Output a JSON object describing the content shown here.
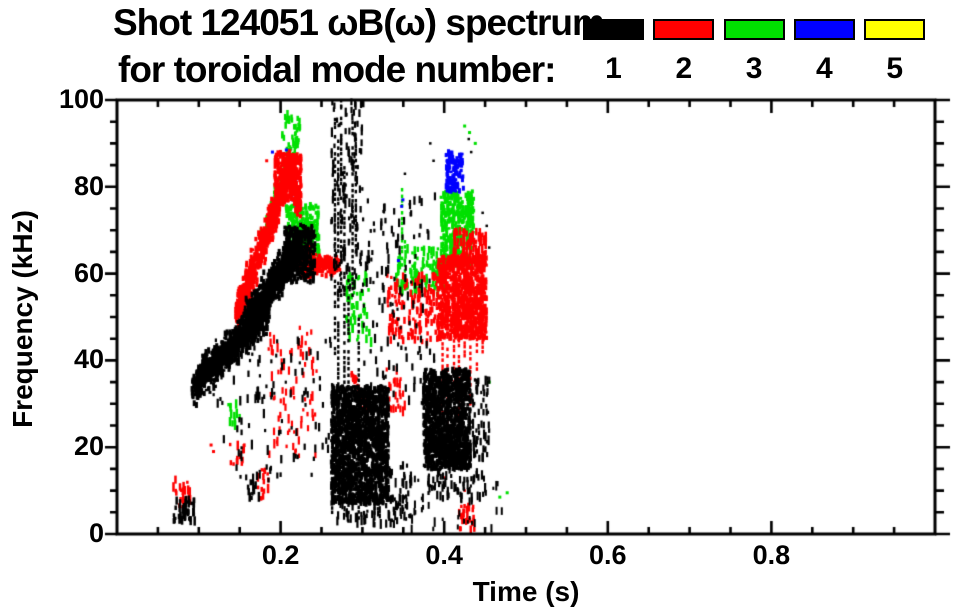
{
  "chart_data": {
    "type": "scatter",
    "title_line1": "Shot 124051 ωB(ω) spectrum",
    "title_line2": "for toroidal mode number:",
    "xlabel": "Time (s)",
    "ylabel": "Frequency (kHz)",
    "xlim": [
      0.0,
      1.0
    ],
    "ylim": [
      0,
      100
    ],
    "x_major_ticks": [
      0.2,
      0.4,
      0.6,
      0.8
    ],
    "x_tick_labels": [
      "0.2",
      "0.4",
      "0.6",
      "0.8"
    ],
    "x_minor_step": 0.05,
    "y_major_ticks": [
      0,
      20,
      40,
      60,
      80,
      100
    ],
    "y_tick_labels": [
      "0",
      "20",
      "40",
      "60",
      "80",
      "100"
    ],
    "y_minor_step": 5,
    "grid": false,
    "legend": {
      "position": "top-right",
      "items": [
        {
          "mode": 1,
          "label": "1",
          "color": "#000000"
        },
        {
          "mode": 2,
          "label": "2",
          "color": "#ff0000"
        },
        {
          "mode": 3,
          "label": "3",
          "color": "#00e000"
        },
        {
          "mode": 4,
          "label": "4",
          "color": "#0000ff"
        },
        {
          "mode": 5,
          "label": "5",
          "color": "#ffff00"
        }
      ]
    },
    "clusters": [
      {
        "mode": 3,
        "kind": "band",
        "t": [
          0.178,
          0.224
        ],
        "f": [
          68,
          94
        ],
        "w": 4,
        "n": 90,
        "size": 2.5
      },
      {
        "mode": 3,
        "kind": "spray",
        "t": [
          0.202,
          0.221
        ],
        "f": [
          86,
          97
        ],
        "n": 20,
        "size": 2.5
      },
      {
        "mode": 3,
        "kind": "blob",
        "t": [
          0.207,
          0.247
        ],
        "f": [
          61,
          76
        ],
        "n": 300,
        "size": 3
      },
      {
        "mode": 3,
        "kind": "spray",
        "t": [
          0.28,
          0.312
        ],
        "f": [
          44,
          60
        ],
        "n": 55,
        "size": 2.5
      },
      {
        "mode": 3,
        "kind": "vlines",
        "lines": [
          [
            0.3485,
            62,
            80
          ],
          [
            0.352,
            58,
            70
          ]
        ]
      },
      {
        "mode": 3,
        "kind": "spray",
        "t": [
          0.34,
          0.4
        ],
        "f": [
          55,
          66
        ],
        "n": 110,
        "size": 2.5
      },
      {
        "mode": 3,
        "kind": "blob",
        "t": [
          0.396,
          0.436
        ],
        "f": [
          62,
          79
        ],
        "n": 330,
        "size": 3
      },
      {
        "mode": 3,
        "kind": "dots",
        "pts": [
          [
            0.425,
            94
          ],
          [
            0.431,
            92.5
          ],
          [
            0.438,
            90
          ],
          [
            0.468,
            8.5
          ],
          [
            0.477,
            9.5
          ],
          [
            0.455,
            35
          ]
        ],
        "size": 3
      },
      {
        "mode": 3,
        "kind": "spray",
        "t": [
          0.132,
          0.152
        ],
        "f": [
          24,
          30
        ],
        "n": 12,
        "size": 2.5
      },
      {
        "mode": 4,
        "kind": "blob",
        "t": [
          0.402,
          0.424
        ],
        "f": [
          79,
          88
        ],
        "n": 110,
        "size": 3
      },
      {
        "mode": 4,
        "kind": "spray",
        "t": [
          0.211,
          0.221
        ],
        "f": [
          75,
          83
        ],
        "n": 12,
        "size": 2.5
      },
      {
        "mode": 4,
        "kind": "dots",
        "pts": [
          [
            0.19,
            88
          ],
          [
            0.348,
            75.5
          ],
          [
            0.3495,
            77
          ],
          [
            0.344,
            63
          ],
          [
            0.207,
            88.5
          ]
        ],
        "size": 3
      },
      {
        "mode": 2,
        "kind": "band",
        "t": [
          0.147,
          0.212
        ],
        "f": [
          51,
          84
        ],
        "w": 5.5,
        "n": 780,
        "size": 3
      },
      {
        "mode": 2,
        "kind": "blob",
        "t": [
          0.193,
          0.225
        ],
        "f": [
          77,
          88
        ],
        "n": 260,
        "size": 3
      },
      {
        "mode": 2,
        "kind": "band",
        "t": [
          0.212,
          0.224
        ],
        "f": [
          84,
          74
        ],
        "w": 3,
        "n": 90,
        "size": 3
      },
      {
        "mode": 2,
        "kind": "band",
        "t": [
          0.224,
          0.272
        ],
        "f": [
          63,
          61.5
        ],
        "w": 2.8,
        "n": 240,
        "size": 3
      },
      {
        "mode": 2,
        "kind": "blob",
        "t": [
          0.221,
          0.237
        ],
        "f": [
          59,
          66
        ],
        "n": 70,
        "size": 3
      },
      {
        "mode": 2,
        "kind": "spray",
        "t": [
          0.185,
          0.245
        ],
        "f": [
          18,
          48
        ],
        "n": 80,
        "size": 2.2
      },
      {
        "mode": 2,
        "kind": "band",
        "t": [
          0.287,
          0.307
        ],
        "f": [
          37,
          28
        ],
        "w": 1.5,
        "n": 55,
        "size": 2.5
      },
      {
        "mode": 2,
        "kind": "spray",
        "t": [
          0.33,
          0.392
        ],
        "f": [
          44,
          60
        ],
        "n": 140,
        "size": 2.5
      },
      {
        "mode": 2,
        "kind": "spray",
        "t": [
          0.328,
          0.352
        ],
        "f": [
          28,
          38
        ],
        "n": 25,
        "size": 2.2
      },
      {
        "mode": 2,
        "kind": "blob",
        "t": [
          0.392,
          0.452
        ],
        "f": [
          45,
          64
        ],
        "n": 850,
        "size": 3
      },
      {
        "mode": 2,
        "kind": "vlines",
        "lines": [
          [
            0.398,
            28,
            62
          ],
          [
            0.404,
            20,
            58
          ],
          [
            0.412,
            35,
            66
          ],
          [
            0.418,
            25,
            64
          ],
          [
            0.425,
            40,
            67
          ],
          [
            0.432,
            30,
            65
          ],
          [
            0.44,
            38,
            64
          ],
          [
            0.447,
            42,
            60
          ]
        ]
      },
      {
        "mode": 2,
        "kind": "spray",
        "t": [
          0.408,
          0.452
        ],
        "f": [
          62,
          70
        ],
        "n": 110,
        "size": 2.5
      },
      {
        "mode": 2,
        "kind": "spray",
        "t": [
          0.068,
          0.092
        ],
        "f": [
          6,
          13
        ],
        "n": 22,
        "size": 2.5
      },
      {
        "mode": 2,
        "kind": "dots",
        "pts": [
          [
            0.115,
            20.5
          ],
          [
            0.118,
            19
          ],
          [
            0.183,
            86
          ]
        ],
        "size": 3
      },
      {
        "mode": 2,
        "kind": "spray",
        "t": [
          0.138,
          0.156
        ],
        "f": [
          16,
          21
        ],
        "n": 13,
        "size": 2.5
      },
      {
        "mode": 2,
        "kind": "spray",
        "t": [
          0.172,
          0.186
        ],
        "f": [
          8,
          15
        ],
        "n": 16,
        "size": 2.5
      },
      {
        "mode": 2,
        "kind": "spray",
        "t": [
          0.418,
          0.437
        ],
        "f": [
          1,
          7
        ],
        "n": 26,
        "size": 2.5
      },
      {
        "mode": 2,
        "kind": "dots",
        "pts": [
          [
            0.4,
            13
          ],
          [
            0.425,
            10
          ],
          [
            0.43,
            16
          ]
        ],
        "size": 2.5
      },
      {
        "mode": 1,
        "kind": "band",
        "t": [
          0.094,
          0.185
        ],
        "f": [
          34,
          52
        ],
        "w": 6,
        "n": 950,
        "size": 3
      },
      {
        "mode": 1,
        "kind": "band",
        "t": [
          0.155,
          0.226
        ],
        "f": [
          48,
          67
        ],
        "w": 6,
        "n": 950,
        "size": 3
      },
      {
        "mode": 1,
        "kind": "blob",
        "t": [
          0.205,
          0.242
        ],
        "f": [
          58,
          71
        ],
        "n": 280,
        "size": 3
      },
      {
        "mode": 1,
        "kind": "spray",
        "t": [
          0.118,
          0.262
        ],
        "f": [
          12,
          46
        ],
        "n": 110,
        "size": 2.2
      },
      {
        "mode": 1,
        "kind": "vlines",
        "lines": [
          [
            0.263,
            5,
            35
          ],
          [
            0.2665,
            40,
            96
          ],
          [
            0.2705,
            8,
            93
          ],
          [
            0.274,
            55,
            100
          ],
          [
            0.278,
            30,
            85
          ],
          [
            0.283,
            3,
            60
          ],
          [
            0.288,
            55,
            98
          ],
          [
            0.292,
            65,
            92
          ],
          [
            0.2955,
            2,
            50
          ]
        ]
      },
      {
        "mode": 1,
        "kind": "spray",
        "t": [
          0.262,
          0.302
        ],
        "f": [
          55,
          100
        ],
        "n": 130,
        "size": 2.2
      },
      {
        "mode": 1,
        "kind": "blob",
        "t": [
          0.262,
          0.332
        ],
        "f": [
          7,
          34
        ],
        "n": 1500,
        "size": 3
      },
      {
        "mode": 1,
        "kind": "spray",
        "t": [
          0.268,
          0.345
        ],
        "f": [
          2,
          9
        ],
        "n": 70,
        "size": 2.2
      },
      {
        "mode": 1,
        "kind": "band",
        "t": [
          0.305,
          0.335
        ],
        "f": [
          27,
          13
        ],
        "w": 1.5,
        "n": 70,
        "size": 2.2
      },
      {
        "mode": 1,
        "kind": "spray",
        "t": [
          0.3,
          0.39
        ],
        "f": [
          30,
          78
        ],
        "n": 130,
        "size": 2.2
      },
      {
        "mode": 1,
        "kind": "blob",
        "t": [
          0.375,
          0.432
        ],
        "f": [
          15,
          38
        ],
        "n": 1150,
        "size": 3
      },
      {
        "mode": 1,
        "kind": "spray",
        "t": [
          0.38,
          0.452
        ],
        "f": [
          8,
          18
        ],
        "n": 70,
        "size": 2.2
      },
      {
        "mode": 1,
        "kind": "spray",
        "t": [
          0.43,
          0.456
        ],
        "f": [
          18,
          36
        ],
        "n": 70,
        "size": 2.2
      },
      {
        "mode": 1,
        "kind": "spray",
        "t": [
          0.335,
          0.475
        ],
        "f": [
          1,
          13
        ],
        "n": 60,
        "size": 2
      },
      {
        "mode": 1,
        "kind": "spray",
        "t": [
          0.068,
          0.096
        ],
        "f": [
          3,
          8
        ],
        "n": 45,
        "size": 2.5
      },
      {
        "mode": 1,
        "kind": "dots",
        "pts": [
          [
            0.383,
            90
          ],
          [
            0.387,
            86
          ],
          [
            0.43,
            91
          ],
          [
            0.433,
            88
          ],
          [
            0.452,
            71
          ],
          [
            0.455,
            66
          ],
          [
            0.447,
            74
          ],
          [
            0.352,
            83
          ],
          [
            0.358,
            76
          ]
        ],
        "size": 2.5
      },
      {
        "mode": 1,
        "kind": "spray",
        "t": [
          0.345,
          0.36
        ],
        "f": [
          4,
          16
        ],
        "n": 25,
        "size": 2.2
      },
      {
        "mode": 1,
        "kind": "spray",
        "t": [
          0.16,
          0.176
        ],
        "f": [
          8,
          12
        ],
        "n": 10,
        "size": 2.5
      }
    ]
  }
}
